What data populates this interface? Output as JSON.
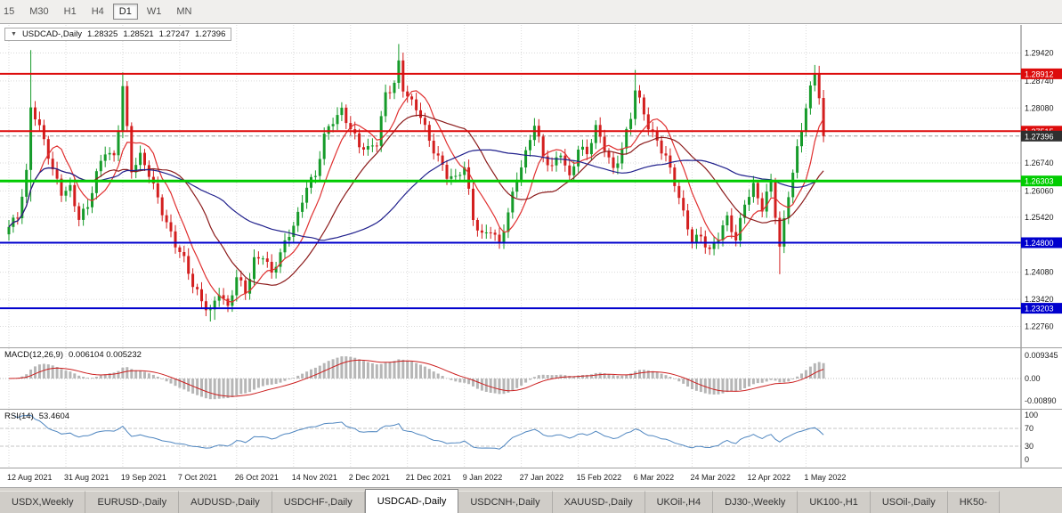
{
  "toolbar": {
    "timeframes": [
      "15",
      "M30",
      "H1",
      "H4",
      "D1",
      "W1",
      "MN"
    ],
    "active": "D1"
  },
  "chart_header": {
    "collapse_icon": "▼",
    "symbol": "USDCAD-,Daily",
    "open": "1.28325",
    "high": "1.28521",
    "low": "1.27247",
    "close": "1.27396"
  },
  "macd_header": {
    "label": "MACD(12,26,9)",
    "values": "0.006104 0.005232"
  },
  "rsi_header": {
    "label": "RSI(14)",
    "value": "53.4604"
  },
  "chart_data": {
    "type": "candlestick",
    "symbol": "USDCAD",
    "period": "Daily",
    "last_ohlc": {
      "open": 1.28325,
      "high": 1.28521,
      "low": 1.27247,
      "close": 1.27396
    },
    "candle_count": 187,
    "x_label_step": 13,
    "x_labels": [
      "12 Aug 2021",
      "31 Aug 2021",
      "19 Sep 2021",
      "7 Oct 2021",
      "26 Oct 2021",
      "14 Nov 2021",
      "2 Dec 2021",
      "21 Dec 2021",
      "9 Jan 2022",
      "27 Jan 2022",
      "15 Feb 2022",
      "6 Mar 2022",
      "24 Mar 2022",
      "12 Apr 2022",
      "1 May 2022"
    ],
    "price_axis": {
      "min": 1.2238,
      "max": 1.298,
      "ticks": [
        1.2942,
        1.2874,
        1.2808,
        1.274,
        1.2674,
        1.2606,
        1.2542,
        1.2474,
        1.2408,
        1.2342,
        1.2276
      ],
      "tick_labels": [
        "1.29420",
        "1.28740",
        "1.28080",
        "1.27400",
        "1.26740",
        "1.26060",
        "1.25420",
        "1.24740",
        "1.24080",
        "1.23420",
        "1.22760"
      ]
    },
    "up_color": "#169b2a",
    "down_color": "#d31f1f",
    "anchors": [
      [
        0,
        1.2512
      ],
      [
        2,
        1.2546
      ],
      [
        4,
        1.2655
      ],
      [
        5,
        1.2818
      ],
      [
        6,
        1.2792
      ],
      [
        8,
        1.2726
      ],
      [
        10,
        1.2648
      ],
      [
        12,
        1.2602
      ],
      [
        14,
        1.2618
      ],
      [
        16,
        1.2545
      ],
      [
        18,
        1.2565
      ],
      [
        20,
        1.264
      ],
      [
        22,
        1.2702
      ],
      [
        24,
        1.2692
      ],
      [
        25,
        1.2765
      ],
      [
        26,
        1.2868
      ],
      [
        27,
        1.2758
      ],
      [
        28,
        1.2655
      ],
      [
        30,
        1.2683
      ],
      [
        32,
        1.2645
      ],
      [
        34,
        1.2592
      ],
      [
        36,
        1.2533
      ],
      [
        38,
        1.2476
      ],
      [
        40,
        1.2432
      ],
      [
        42,
        1.2373
      ],
      [
        44,
        1.2342
      ],
      [
        46,
        1.2318
      ],
      [
        48,
        1.2362
      ],
      [
        50,
        1.2313
      ],
      [
        52,
        1.2392
      ],
      [
        54,
        1.2363
      ],
      [
        56,
        1.2443
      ],
      [
        58,
        1.2452
      ],
      [
        60,
        1.2398
      ],
      [
        62,
        1.2448
      ],
      [
        64,
        1.2503
      ],
      [
        66,
        1.2553
      ],
      [
        68,
        1.2623
      ],
      [
        70,
        1.2638
      ],
      [
        72,
        1.2733
      ],
      [
        74,
        1.2778
      ],
      [
        76,
        1.2808
      ],
      [
        78,
        1.2763
      ],
      [
        80,
        1.2713
      ],
      [
        82,
        1.27
      ],
      [
        84,
        1.2723
      ],
      [
        86,
        1.2848
      ],
      [
        88,
        1.2873
      ],
      [
        89,
        1.2918
      ],
      [
        90,
        1.2853
      ],
      [
        92,
        1.2813
      ],
      [
        94,
        1.2788
      ],
      [
        96,
        1.2733
      ],
      [
        98,
        1.2693
      ],
      [
        100,
        1.2643
      ],
      [
        102,
        1.2628
      ],
      [
        104,
        1.2663
      ],
      [
        106,
        1.2543
      ],
      [
        108,
        1.2503
      ],
      [
        110,
        1.2513
      ],
      [
        112,
        1.2468
      ],
      [
        114,
        1.2548
      ],
      [
        116,
        1.2643
      ],
      [
        118,
        1.2703
      ],
      [
        120,
        1.2773
      ],
      [
        122,
        1.2683
      ],
      [
        124,
        1.2658
      ],
      [
        126,
        1.2703
      ],
      [
        128,
        1.2643
      ],
      [
        130,
        1.2713
      ],
      [
        132,
        1.2693
      ],
      [
        134,
        1.2753
      ],
      [
        136,
        1.2713
      ],
      [
        138,
        1.2663
      ],
      [
        140,
        1.2713
      ],
      [
        142,
        1.2783
      ],
      [
        143,
        1.2848
      ],
      [
        144,
        1.2818
      ],
      [
        146,
        1.2763
      ],
      [
        148,
        1.2733
      ],
      [
        150,
        1.2693
      ],
      [
        152,
        1.2623
      ],
      [
        154,
        1.2543
      ],
      [
        156,
        1.2483
      ],
      [
        158,
        1.2503
      ],
      [
        160,
        1.2463
      ],
      [
        162,
        1.2493
      ],
      [
        164,
        1.2533
      ],
      [
        166,
        1.2483
      ],
      [
        168,
        1.2583
      ],
      [
        170,
        1.2623
      ],
      [
        172,
        1.2563
      ],
      [
        174,
        1.2623
      ],
      [
        176,
        1.2463
      ],
      [
        178,
        1.2603
      ],
      [
        180,
        1.2713
      ],
      [
        182,
        1.2813
      ],
      [
        184,
        1.2888
      ],
      [
        185,
        1.2833
      ],
      [
        186,
        1.27396
      ]
    ],
    "overrides": [
      {
        "i": 5,
        "h": 1.2949,
        "l": 1.258
      },
      {
        "i": 26,
        "h": 1.2895
      },
      {
        "i": 46,
        "l": 1.2288
      },
      {
        "i": 47,
        "l": 1.2292
      },
      {
        "i": 89,
        "h": 1.2964
      },
      {
        "i": 143,
        "h": 1.2901
      },
      {
        "i": 176,
        "l": 1.2403
      },
      {
        "i": 184,
        "h": 1.2913
      },
      {
        "i": 186,
        "o": 1.28325,
        "h": 1.28521,
        "l": 1.27247,
        "c": 1.27396
      }
    ],
    "hlines": [
      {
        "price": 1.28912,
        "label": "1.28912",
        "color": "#dd0c0c",
        "width": 2
      },
      {
        "price": 1.27515,
        "label": "1.27515",
        "color": "#dd0c0c",
        "width": 2
      },
      {
        "price": 1.26303,
        "label": "1.26303",
        "color": "#00cc00",
        "width": 3
      },
      {
        "price": 1.248,
        "label": "1.24800",
        "color": "#0000cd",
        "width": 2
      },
      {
        "price": 1.23203,
        "label": "1.23203",
        "color": "#0000cd",
        "width": 2
      }
    ],
    "current_price": {
      "value": 1.27396,
      "label": "1.27396",
      "bg": "#2f2f2f"
    },
    "moving_averages": [
      {
        "period": 8,
        "color": "#e03030"
      },
      {
        "period": 20,
        "color": "#8b1a1a"
      },
      {
        "period": 45,
        "color": "#20208c"
      }
    ],
    "macd": {
      "fast": 12,
      "slow": 26,
      "signal": 9,
      "value": 0.006104,
      "signal_value": 0.005232,
      "axis_ticks": [
        {
          "v": 0.009345,
          "label": "0.009345"
        },
        {
          "v": 0,
          "label": "0.00"
        },
        {
          "v": -0.0089,
          "label": "-0.00890"
        }
      ],
      "hist_color": "#b6b6b6",
      "line_color": "#cc1f1f"
    },
    "rsi": {
      "period": 14,
      "value": 53.4604,
      "levels": [
        70,
        30
      ],
      "axis_ticks": [
        {
          "v": 100,
          "label": "100"
        },
        {
          "v": 70,
          "label": "70"
        },
        {
          "v": 30,
          "label": "30"
        },
        {
          "v": 0,
          "label": "0"
        }
      ],
      "color": "#4f86c0"
    }
  },
  "bottom_tabs": {
    "active": "USDCAD-,Daily",
    "tabs": [
      "USDX,Weekly",
      "EURUSD-,Daily",
      "AUDUSD-,Daily",
      "USDCHF-,Daily",
      "USDCAD-,Daily",
      "USDCNH-,Daily",
      "XAUUSD-,Daily",
      "UKOil-,H4",
      "DJ30-,Weekly",
      "UK100-,H1",
      "USOil-,Daily",
      "HK50-"
    ]
  }
}
